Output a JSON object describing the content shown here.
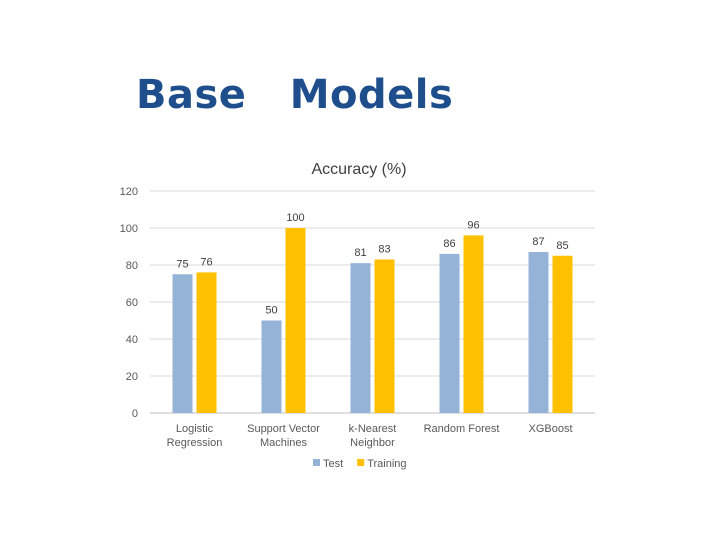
{
  "slide": {
    "title": "Base   Models"
  },
  "chart_data": {
    "type": "bar",
    "title": "Accuracy (%)",
    "xlabel": "",
    "ylabel": "",
    "ylim": [
      0,
      120
    ],
    "yticks": [
      0,
      20,
      40,
      60,
      80,
      100,
      120
    ],
    "grid": true,
    "legend_position": "bottom",
    "categories": [
      [
        "Logistic",
        "Regression"
      ],
      [
        "Support Vector",
        "Machines"
      ],
      [
        "k-Nearest",
        "Neighbor"
      ],
      [
        "Random Forest"
      ],
      [
        "XGBoost"
      ]
    ],
    "series": [
      {
        "name": "Test",
        "color": "#95b3d7",
        "values": [
          75,
          50,
          81,
          86,
          87
        ]
      },
      {
        "name": "Training",
        "color": "#ffc000",
        "values": [
          76,
          100,
          83,
          96,
          85
        ]
      }
    ]
  }
}
